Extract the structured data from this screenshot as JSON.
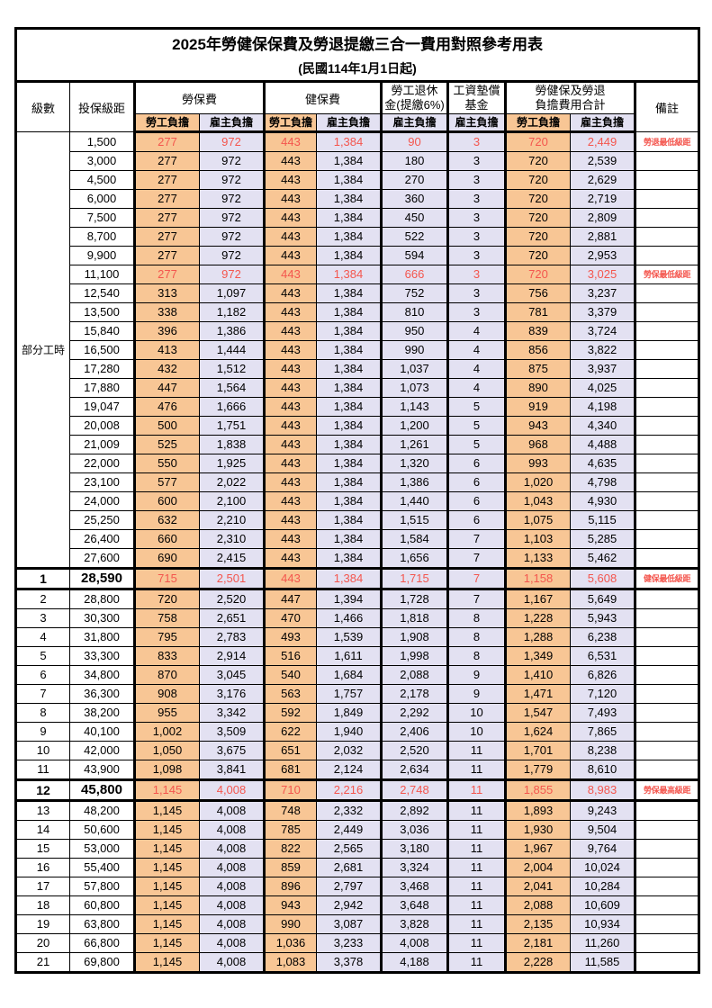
{
  "page": {
    "title": "2025年勞健保保費及勞退提繳三合一費用對照參考用表",
    "subtitle": "(民國114年1月1日起)"
  },
  "colors": {
    "employee_fill": "#F8C695",
    "employer_fill": "#E3E1F2",
    "highlight_text": "#F4564E",
    "border": "#000000"
  },
  "table": {
    "header": {
      "level": "級數",
      "bracket": "投保級距",
      "labor": "勞保費",
      "health": "健保費",
      "pension_l1": "勞工退休",
      "pension_l2": "金(提繳6%)",
      "wage_l1": "工資墊償",
      "wage_l2": "基金",
      "total_l1": "勞健保及勞退",
      "total_l2": "負擔費用合計",
      "remark": "備註",
      "employee": "勞工負擔",
      "employer": "雇主負擔"
    },
    "part_time_label": "部分工時",
    "rows": [
      {
        "level": "",
        "bracket": "1,500",
        "li_emp": "277",
        "li_er": "972",
        "hi_emp": "443",
        "hi_er": "1,384",
        "pension": "90",
        "wage": "3",
        "tot_emp": "720",
        "tot_er": "2,449",
        "remark": "勞退最低級距",
        "hl": true
      },
      {
        "level": "",
        "bracket": "3,000",
        "li_emp": "277",
        "li_er": "972",
        "hi_emp": "443",
        "hi_er": "1,384",
        "pension": "180",
        "wage": "3",
        "tot_emp": "720",
        "tot_er": "2,539",
        "remark": ""
      },
      {
        "level": "",
        "bracket": "4,500",
        "li_emp": "277",
        "li_er": "972",
        "hi_emp": "443",
        "hi_er": "1,384",
        "pension": "270",
        "wage": "3",
        "tot_emp": "720",
        "tot_er": "2,629",
        "remark": ""
      },
      {
        "level": "",
        "bracket": "6,000",
        "li_emp": "277",
        "li_er": "972",
        "hi_emp": "443",
        "hi_er": "1,384",
        "pension": "360",
        "wage": "3",
        "tot_emp": "720",
        "tot_er": "2,719",
        "remark": ""
      },
      {
        "level": "",
        "bracket": "7,500",
        "li_emp": "277",
        "li_er": "972",
        "hi_emp": "443",
        "hi_er": "1,384",
        "pension": "450",
        "wage": "3",
        "tot_emp": "720",
        "tot_er": "2,809",
        "remark": ""
      },
      {
        "level": "",
        "bracket": "8,700",
        "li_emp": "277",
        "li_er": "972",
        "hi_emp": "443",
        "hi_er": "1,384",
        "pension": "522",
        "wage": "3",
        "tot_emp": "720",
        "tot_er": "2,881",
        "remark": ""
      },
      {
        "level": "",
        "bracket": "9,900",
        "li_emp": "277",
        "li_er": "972",
        "hi_emp": "443",
        "hi_er": "1,384",
        "pension": "594",
        "wage": "3",
        "tot_emp": "720",
        "tot_er": "2,953",
        "remark": ""
      },
      {
        "level": "",
        "bracket": "11,100",
        "li_emp": "277",
        "li_er": "972",
        "hi_emp": "443",
        "hi_er": "1,384",
        "pension": "666",
        "wage": "3",
        "tot_emp": "720",
        "tot_er": "3,025",
        "remark": "勞保最低級距",
        "hl": true
      },
      {
        "level": "",
        "bracket": "12,540",
        "li_emp": "313",
        "li_er": "1,097",
        "hi_emp": "443",
        "hi_er": "1,384",
        "pension": "752",
        "wage": "3",
        "tot_emp": "756",
        "tot_er": "3,237",
        "remark": ""
      },
      {
        "level": "",
        "bracket": "13,500",
        "li_emp": "338",
        "li_er": "1,182",
        "hi_emp": "443",
        "hi_er": "1,384",
        "pension": "810",
        "wage": "3",
        "tot_emp": "781",
        "tot_er": "3,379",
        "remark": ""
      },
      {
        "level": "",
        "bracket": "15,840",
        "li_emp": "396",
        "li_er": "1,386",
        "hi_emp": "443",
        "hi_er": "1,384",
        "pension": "950",
        "wage": "4",
        "tot_emp": "839",
        "tot_er": "3,724",
        "remark": ""
      },
      {
        "level": "",
        "bracket": "16,500",
        "li_emp": "413",
        "li_er": "1,444",
        "hi_emp": "443",
        "hi_er": "1,384",
        "pension": "990",
        "wage": "4",
        "tot_emp": "856",
        "tot_er": "3,822",
        "remark": ""
      },
      {
        "level": "",
        "bracket": "17,280",
        "li_emp": "432",
        "li_er": "1,512",
        "hi_emp": "443",
        "hi_er": "1,384",
        "pension": "1,037",
        "wage": "4",
        "tot_emp": "875",
        "tot_er": "3,937",
        "remark": ""
      },
      {
        "level": "",
        "bracket": "17,880",
        "li_emp": "447",
        "li_er": "1,564",
        "hi_emp": "443",
        "hi_er": "1,384",
        "pension": "1,073",
        "wage": "4",
        "tot_emp": "890",
        "tot_er": "4,025",
        "remark": ""
      },
      {
        "level": "",
        "bracket": "19,047",
        "li_emp": "476",
        "li_er": "1,666",
        "hi_emp": "443",
        "hi_er": "1,384",
        "pension": "1,143",
        "wage": "5",
        "tot_emp": "919",
        "tot_er": "4,198",
        "remark": ""
      },
      {
        "level": "",
        "bracket": "20,008",
        "li_emp": "500",
        "li_er": "1,751",
        "hi_emp": "443",
        "hi_er": "1,384",
        "pension": "1,200",
        "wage": "5",
        "tot_emp": "943",
        "tot_er": "4,340",
        "remark": ""
      },
      {
        "level": "",
        "bracket": "21,009",
        "li_emp": "525",
        "li_er": "1,838",
        "hi_emp": "443",
        "hi_er": "1,384",
        "pension": "1,261",
        "wage": "5",
        "tot_emp": "968",
        "tot_er": "4,488",
        "remark": ""
      },
      {
        "level": "",
        "bracket": "22,000",
        "li_emp": "550",
        "li_er": "1,925",
        "hi_emp": "443",
        "hi_er": "1,384",
        "pension": "1,320",
        "wage": "6",
        "tot_emp": "993",
        "tot_er": "4,635",
        "remark": ""
      },
      {
        "level": "",
        "bracket": "23,100",
        "li_emp": "577",
        "li_er": "2,022",
        "hi_emp": "443",
        "hi_er": "1,384",
        "pension": "1,386",
        "wage": "6",
        "tot_emp": "1,020",
        "tot_er": "4,798",
        "remark": ""
      },
      {
        "level": "",
        "bracket": "24,000",
        "li_emp": "600",
        "li_er": "2,100",
        "hi_emp": "443",
        "hi_er": "1,384",
        "pension": "1,440",
        "wage": "6",
        "tot_emp": "1,043",
        "tot_er": "4,930",
        "remark": ""
      },
      {
        "level": "",
        "bracket": "25,250",
        "li_emp": "632",
        "li_er": "2,210",
        "hi_emp": "443",
        "hi_er": "1,384",
        "pension": "1,515",
        "wage": "6",
        "tot_emp": "1,075",
        "tot_er": "5,115",
        "remark": ""
      },
      {
        "level": "",
        "bracket": "26,400",
        "li_emp": "660",
        "li_er": "2,310",
        "hi_emp": "443",
        "hi_er": "1,384",
        "pension": "1,584",
        "wage": "7",
        "tot_emp": "1,103",
        "tot_er": "5,285",
        "remark": ""
      },
      {
        "level": "",
        "bracket": "27,600",
        "li_emp": "690",
        "li_er": "2,415",
        "hi_emp": "443",
        "hi_er": "1,384",
        "pension": "1,656",
        "wage": "7",
        "tot_emp": "1,133",
        "tot_er": "5,462",
        "remark": ""
      },
      {
        "level": "1",
        "bracket": "28,590",
        "li_emp": "715",
        "li_er": "2,501",
        "hi_emp": "443",
        "hi_er": "1,384",
        "pension": "1,715",
        "wage": "7",
        "tot_emp": "1,158",
        "tot_er": "5,608",
        "remark": "健保最低級距",
        "hl": true,
        "strong": true
      },
      {
        "level": "2",
        "bracket": "28,800",
        "li_emp": "720",
        "li_er": "2,520",
        "hi_emp": "447",
        "hi_er": "1,394",
        "pension": "1,728",
        "wage": "7",
        "tot_emp": "1,167",
        "tot_er": "5,649",
        "remark": ""
      },
      {
        "level": "3",
        "bracket": "30,300",
        "li_emp": "758",
        "li_er": "2,651",
        "hi_emp": "470",
        "hi_er": "1,466",
        "pension": "1,818",
        "wage": "8",
        "tot_emp": "1,228",
        "tot_er": "5,943",
        "remark": ""
      },
      {
        "level": "4",
        "bracket": "31,800",
        "li_emp": "795",
        "li_er": "2,783",
        "hi_emp": "493",
        "hi_er": "1,539",
        "pension": "1,908",
        "wage": "8",
        "tot_emp": "1,288",
        "tot_er": "6,238",
        "remark": ""
      },
      {
        "level": "5",
        "bracket": "33,300",
        "li_emp": "833",
        "li_er": "2,914",
        "hi_emp": "516",
        "hi_er": "1,611",
        "pension": "1,998",
        "wage": "8",
        "tot_emp": "1,349",
        "tot_er": "6,531",
        "remark": ""
      },
      {
        "level": "6",
        "bracket": "34,800",
        "li_emp": "870",
        "li_er": "3,045",
        "hi_emp": "540",
        "hi_er": "1,684",
        "pension": "2,088",
        "wage": "9",
        "tot_emp": "1,410",
        "tot_er": "6,826",
        "remark": ""
      },
      {
        "level": "7",
        "bracket": "36,300",
        "li_emp": "908",
        "li_er": "3,176",
        "hi_emp": "563",
        "hi_er": "1,757",
        "pension": "2,178",
        "wage": "9",
        "tot_emp": "1,471",
        "tot_er": "7,120",
        "remark": ""
      },
      {
        "level": "8",
        "bracket": "38,200",
        "li_emp": "955",
        "li_er": "3,342",
        "hi_emp": "592",
        "hi_er": "1,849",
        "pension": "2,292",
        "wage": "10",
        "tot_emp": "1,547",
        "tot_er": "7,493",
        "remark": ""
      },
      {
        "level": "9",
        "bracket": "40,100",
        "li_emp": "1,002",
        "li_er": "3,509",
        "hi_emp": "622",
        "hi_er": "1,940",
        "pension": "2,406",
        "wage": "10",
        "tot_emp": "1,624",
        "tot_er": "7,865",
        "remark": ""
      },
      {
        "level": "10",
        "bracket": "42,000",
        "li_emp": "1,050",
        "li_er": "3,675",
        "hi_emp": "651",
        "hi_er": "2,032",
        "pension": "2,520",
        "wage": "11",
        "tot_emp": "1,701",
        "tot_er": "8,238",
        "remark": ""
      },
      {
        "level": "11",
        "bracket": "43,900",
        "li_emp": "1,098",
        "li_er": "3,841",
        "hi_emp": "681",
        "hi_er": "2,124",
        "pension": "2,634",
        "wage": "11",
        "tot_emp": "1,779",
        "tot_er": "8,610",
        "remark": ""
      },
      {
        "level": "12",
        "bracket": "45,800",
        "li_emp": "1,145",
        "li_er": "4,008",
        "hi_emp": "710",
        "hi_er": "2,216",
        "pension": "2,748",
        "wage": "11",
        "tot_emp": "1,855",
        "tot_er": "8,983",
        "remark": "勞保最高級距",
        "hl": true,
        "strong": true
      },
      {
        "level": "13",
        "bracket": "48,200",
        "li_emp": "1,145",
        "li_er": "4,008",
        "hi_emp": "748",
        "hi_er": "2,332",
        "pension": "2,892",
        "wage": "11",
        "tot_emp": "1,893",
        "tot_er": "9,243",
        "remark": ""
      },
      {
        "level": "14",
        "bracket": "50,600",
        "li_emp": "1,145",
        "li_er": "4,008",
        "hi_emp": "785",
        "hi_er": "2,449",
        "pension": "3,036",
        "wage": "11",
        "tot_emp": "1,930",
        "tot_er": "9,504",
        "remark": ""
      },
      {
        "level": "15",
        "bracket": "53,000",
        "li_emp": "1,145",
        "li_er": "4,008",
        "hi_emp": "822",
        "hi_er": "2,565",
        "pension": "3,180",
        "wage": "11",
        "tot_emp": "1,967",
        "tot_er": "9,764",
        "remark": ""
      },
      {
        "level": "16",
        "bracket": "55,400",
        "li_emp": "1,145",
        "li_er": "4,008",
        "hi_emp": "859",
        "hi_er": "2,681",
        "pension": "3,324",
        "wage": "11",
        "tot_emp": "2,004",
        "tot_er": "10,024",
        "remark": ""
      },
      {
        "level": "17",
        "bracket": "57,800",
        "li_emp": "1,145",
        "li_er": "4,008",
        "hi_emp": "896",
        "hi_er": "2,797",
        "pension": "3,468",
        "wage": "11",
        "tot_emp": "2,041",
        "tot_er": "10,284",
        "remark": ""
      },
      {
        "level": "18",
        "bracket": "60,800",
        "li_emp": "1,145",
        "li_er": "4,008",
        "hi_emp": "943",
        "hi_er": "2,942",
        "pension": "3,648",
        "wage": "11",
        "tot_emp": "2,088",
        "tot_er": "10,609",
        "remark": ""
      },
      {
        "level": "19",
        "bracket": "63,800",
        "li_emp": "1,145",
        "li_er": "4,008",
        "hi_emp": "990",
        "hi_er": "3,087",
        "pension": "3,828",
        "wage": "11",
        "tot_emp": "2,135",
        "tot_er": "10,934",
        "remark": ""
      },
      {
        "level": "20",
        "bracket": "66,800",
        "li_emp": "1,145",
        "li_er": "4,008",
        "hi_emp": "1,036",
        "hi_er": "3,233",
        "pension": "4,008",
        "wage": "11",
        "tot_emp": "2,181",
        "tot_er": "11,260",
        "remark": ""
      },
      {
        "level": "21",
        "bracket": "69,800",
        "li_emp": "1,145",
        "li_er": "4,008",
        "hi_emp": "1,083",
        "hi_er": "3,378",
        "pension": "4,188",
        "wage": "11",
        "tot_emp": "2,228",
        "tot_er": "11,585",
        "remark": ""
      }
    ]
  }
}
